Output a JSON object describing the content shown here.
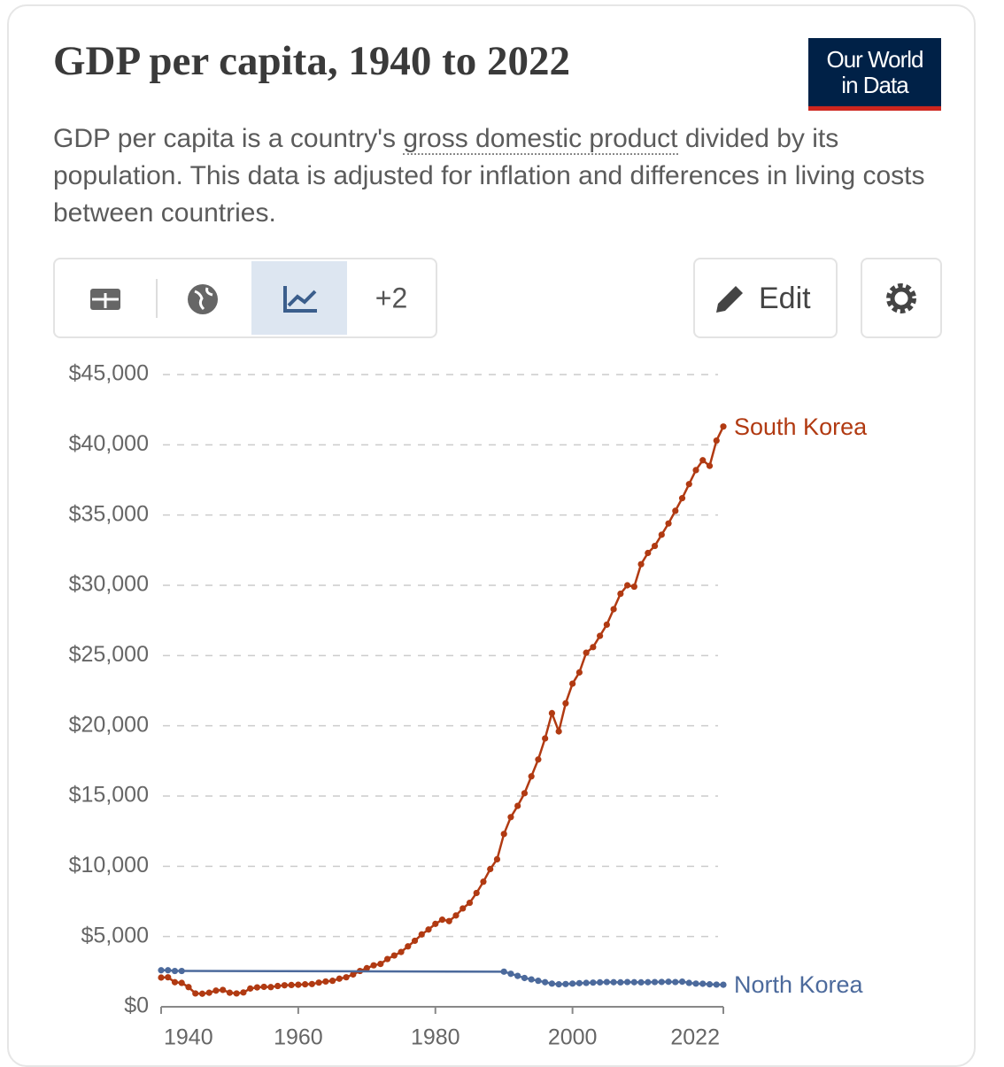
{
  "header": {
    "logo": [
      "Our World",
      "in Data"
    ]
  },
  "toolbar": {
    "more": "+2",
    "edit": "Edit"
  },
  "chart_data": {
    "type": "line",
    "title": "GDP per capita, 1940 to 2022",
    "subtitle": [
      "GDP per capita is a country's ",
      "gross domestic product",
      " divided by its population. This data is adjusted for inflation and differences in living costs between countries."
    ],
    "xlim": [
      1940,
      2022
    ],
    "xticks": [
      1940,
      1960,
      1980,
      2000,
      2022
    ],
    "ylim": [
      0,
      45000
    ],
    "yticks": [
      {
        "value": 0,
        "label": "$0"
      },
      {
        "value": 5000,
        "label": "$5,000"
      },
      {
        "value": 10000,
        "label": "$10,000"
      },
      {
        "value": 15000,
        "label": "$15,000"
      },
      {
        "value": 20000,
        "label": "$20,000"
      },
      {
        "value": 25000,
        "label": "$25,000"
      },
      {
        "value": 30000,
        "label": "$30,000"
      },
      {
        "value": 35000,
        "label": "$35,000"
      },
      {
        "value": 40000,
        "label": "$40,000"
      },
      {
        "value": 45000,
        "label": "$45,000"
      }
    ],
    "grid": true,
    "series": [
      {
        "name": "South Korea",
        "color": "#b13a12",
        "x": [
          1940,
          1941,
          1942,
          1943,
          1944,
          1945,
          1946,
          1947,
          1948,
          1949,
          1950,
          1951,
          1952,
          1953,
          1954,
          1955,
          1956,
          1957,
          1958,
          1959,
          1960,
          1961,
          1962,
          1963,
          1964,
          1965,
          1966,
          1967,
          1968,
          1969,
          1970,
          1971,
          1972,
          1973,
          1974,
          1975,
          1976,
          1977,
          1978,
          1979,
          1980,
          1981,
          1982,
          1983,
          1984,
          1985,
          1986,
          1987,
          1988,
          1989,
          1990,
          1991,
          1992,
          1993,
          1994,
          1995,
          1996,
          1997,
          1998,
          1999,
          2000,
          2001,
          2002,
          2003,
          2004,
          2005,
          2006,
          2007,
          2008,
          2009,
          2010,
          2011,
          2012,
          2013,
          2014,
          2015,
          2016,
          2017,
          2018,
          2019,
          2020,
          2021,
          2022
        ],
        "values": [
          2080,
          2100,
          1750,
          1700,
          1400,
          950,
          930,
          1000,
          1150,
          1200,
          1000,
          950,
          1020,
          1300,
          1380,
          1420,
          1400,
          1480,
          1530,
          1550,
          1570,
          1600,
          1620,
          1720,
          1800,
          1850,
          2000,
          2100,
          2300,
          2550,
          2750,
          2950,
          3050,
          3400,
          3650,
          3900,
          4300,
          4700,
          5150,
          5500,
          5900,
          6200,
          6100,
          6500,
          7000,
          7400,
          8100,
          8900,
          9800,
          10500,
          12300,
          13500,
          14300,
          15200,
          16400,
          17600,
          19100,
          20900,
          19600,
          21600,
          23000,
          23800,
          25200,
          25600,
          26400,
          27200,
          28300,
          29400,
          30000,
          29900,
          31500,
          32300,
          32800,
          33600,
          34400,
          35300,
          36200,
          37200,
          38200,
          38900,
          38500,
          40300,
          41300
        ]
      },
      {
        "name": "North Korea",
        "color": "#4c6a9c",
        "x": [
          1940,
          1941,
          1942,
          1943,
          1990,
          1991,
          1992,
          1993,
          1994,
          1995,
          1996,
          1997,
          1998,
          1999,
          2000,
          2001,
          2002,
          2003,
          2004,
          2005,
          2006,
          2007,
          2008,
          2009,
          2010,
          2011,
          2012,
          2013,
          2014,
          2015,
          2016,
          2017,
          2018,
          2019,
          2020,
          2021,
          2022
        ],
        "values": [
          2600,
          2600,
          2550,
          2550,
          2500,
          2350,
          2200,
          2050,
          1950,
          1850,
          1750,
          1650,
          1600,
          1620,
          1650,
          1680,
          1700,
          1720,
          1740,
          1760,
          1750,
          1740,
          1760,
          1750,
          1740,
          1750,
          1760,
          1770,
          1780,
          1760,
          1790,
          1700,
          1650,
          1640,
          1600,
          1580,
          1570
        ]
      }
    ]
  }
}
